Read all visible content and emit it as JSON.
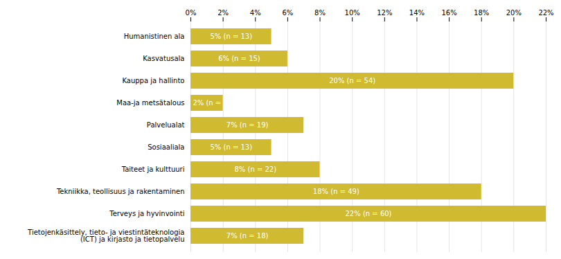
{
  "chart_data": {
    "type": "bar",
    "orientation": "horizontal",
    "categories": [
      "Humanistinen ala",
      "Kasvatusala",
      "Kauppa ja hallinto",
      "Maa-ja metsätalous",
      "Palvelualat",
      "Sosiaaliala",
      "Taiteet ja kulttuuri",
      "Tekniikka, teollisuus ja rakentaminen",
      "Terveys ja hyvinvointi",
      "Tietojenkäsittely, tieto- ja viestintäteknologia\n(ICT) ja kirjasto ja tietopalvelu"
    ],
    "values": [
      5,
      6,
      20,
      2,
      7,
      5,
      8,
      18,
      22,
      7
    ],
    "value_labels": [
      "5% (n = 13)",
      "6% (n = 15)",
      "20% (n = 54)",
      "2% (n =",
      "7% (n = 19)",
      "5% (n = 13)",
      "8% (n = 22)",
      "18% (n = 49)",
      "22% (n = 60)",
      "7% (n = 18)"
    ],
    "color": "#CFBA30",
    "xlim": [
      0,
      22
    ],
    "xticks": [
      {
        "value": 0,
        "label": "0%"
      },
      {
        "value": 2,
        "label": "2%"
      },
      {
        "value": 4,
        "label": "4%"
      },
      {
        "value": 6,
        "label": "6%"
      },
      {
        "value": 8,
        "label": "8%"
      },
      {
        "value": 10,
        "label": "10%"
      },
      {
        "value": 12,
        "label": "12%"
      },
      {
        "value": 14,
        "label": "14%"
      },
      {
        "value": 16,
        "label": "16%"
      },
      {
        "value": 18,
        "label": "18%"
      },
      {
        "value": 20,
        "label": "20%"
      },
      {
        "value": 22,
        "label": "22%"
      }
    ],
    "grid": true,
    "data_labels": true
  }
}
